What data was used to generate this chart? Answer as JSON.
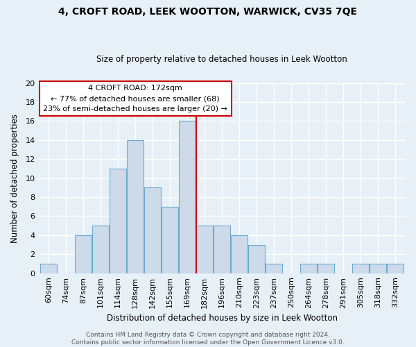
{
  "title": "4, CROFT ROAD, LEEK WOOTTON, WARWICK, CV35 7QE",
  "subtitle": "Size of property relative to detached houses in Leek Wootton",
  "xlabel": "Distribution of detached houses by size in Leek Wootton",
  "ylabel": "Number of detached properties",
  "footer": "Contains HM Land Registry data © Crown copyright and database right 2024.\nContains public sector information licensed under the Open Government Licence v3.0.",
  "categories": [
    "60sqm",
    "74sqm",
    "87sqm",
    "101sqm",
    "114sqm",
    "128sqm",
    "142sqm",
    "155sqm",
    "169sqm",
    "182sqm",
    "196sqm",
    "210sqm",
    "223sqm",
    "237sqm",
    "250sqm",
    "264sqm",
    "278sqm",
    "291sqm",
    "305sqm",
    "318sqm",
    "332sqm"
  ],
  "values": [
    1,
    0,
    4,
    5,
    11,
    14,
    9,
    7,
    16,
    5,
    5,
    4,
    3,
    1,
    0,
    1,
    1,
    0,
    1,
    1,
    1
  ],
  "bar_color": "#ccdaea",
  "bar_edge_color": "#6aaad4",
  "property_line_index": 8.5,
  "property_label": "4 CROFT ROAD: 172sqm",
  "annotation_line1": "← 77% of detached houses are smaller (68)",
  "annotation_line2": "23% of semi-detached houses are larger (20) →",
  "annotation_box_color": "#ffffff",
  "annotation_box_edge": "#cc0000",
  "vline_color": "#cc0000",
  "ylim": [
    0,
    20
  ],
  "yticks": [
    0,
    2,
    4,
    6,
    8,
    10,
    12,
    14,
    16,
    18,
    20
  ],
  "bg_color": "#e8f0f7",
  "grid_color": "#ffffff",
  "title_fontsize": 10,
  "subtitle_fontsize": 8.5,
  "axis_label_fontsize": 8.5,
  "tick_fontsize": 8,
  "annotation_fontsize": 8,
  "footer_fontsize": 6.5
}
